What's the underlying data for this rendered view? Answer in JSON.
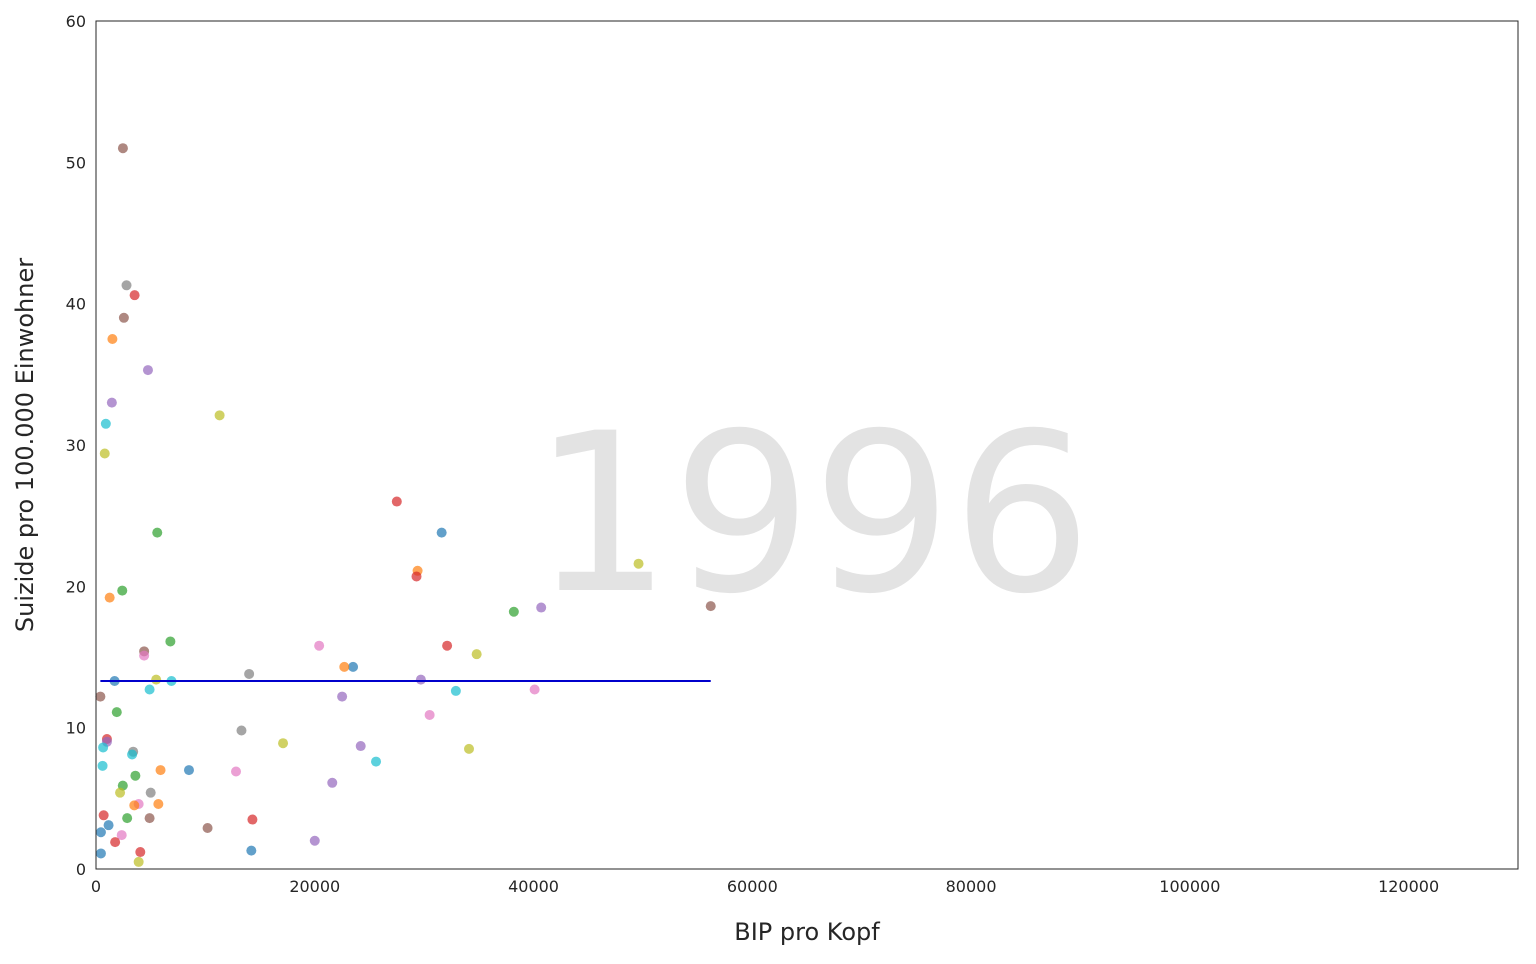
{
  "chart_data": {
    "type": "scatter",
    "title": "",
    "watermark": "1996",
    "xlabel": "BIP pro Kopf",
    "ylabel": "Suizide pro 100.000 Einwohner",
    "xlim": [
      0,
      130000
    ],
    "ylim": [
      0,
      60
    ],
    "xticks": [
      0,
      20000,
      40000,
      60000,
      80000,
      100000,
      120000
    ],
    "yticks": [
      0,
      10,
      20,
      30,
      40,
      50,
      60
    ],
    "grid": false,
    "legend": "none",
    "trend_line": {
      "color": "#0000cc",
      "x": [
        400,
        56200
      ],
      "y": [
        13.3,
        13.3
      ]
    },
    "points": [
      {
        "x": 2460,
        "y": 51.0,
        "color": "#8c564b"
      },
      {
        "x": 2790,
        "y": 41.3,
        "color": "#7f7f7f"
      },
      {
        "x": 3530,
        "y": 40.6,
        "color": "#d62728"
      },
      {
        "x": 2550,
        "y": 39.0,
        "color": "#8c564b"
      },
      {
        "x": 1500,
        "y": 37.5,
        "color": "#ff7f0e"
      },
      {
        "x": 4750,
        "y": 35.3,
        "color": "#9467bd"
      },
      {
        "x": 1450,
        "y": 33.0,
        "color": "#9467bd"
      },
      {
        "x": 11300,
        "y": 32.1,
        "color": "#bcbd22"
      },
      {
        "x": 900,
        "y": 31.5,
        "color": "#17becf"
      },
      {
        "x": 800,
        "y": 29.4,
        "color": "#bcbd22"
      },
      {
        "x": 27500,
        "y": 26.0,
        "color": "#d62728"
      },
      {
        "x": 5600,
        "y": 23.8,
        "color": "#2ca02c"
      },
      {
        "x": 31600,
        "y": 23.8,
        "color": "#1f77b4"
      },
      {
        "x": 49600,
        "y": 21.6,
        "color": "#bcbd22"
      },
      {
        "x": 29400,
        "y": 21.1,
        "color": "#ff7f0e"
      },
      {
        "x": 29300,
        "y": 20.7,
        "color": "#d62728"
      },
      {
        "x": 2400,
        "y": 19.7,
        "color": "#2ca02c"
      },
      {
        "x": 1250,
        "y": 19.2,
        "color": "#ff7f0e"
      },
      {
        "x": 56200,
        "y": 18.6,
        "color": "#8c564b"
      },
      {
        "x": 40700,
        "y": 18.5,
        "color": "#9467bd"
      },
      {
        "x": 38200,
        "y": 18.2,
        "color": "#2ca02c"
      },
      {
        "x": 6800,
        "y": 16.1,
        "color": "#2ca02c"
      },
      {
        "x": 20400,
        "y": 15.8,
        "color": "#e377c2"
      },
      {
        "x": 32100,
        "y": 15.8,
        "color": "#d62728"
      },
      {
        "x": 4400,
        "y": 15.4,
        "color": "#8c564b"
      },
      {
        "x": 34800,
        "y": 15.2,
        "color": "#bcbd22"
      },
      {
        "x": 4400,
        "y": 15.1,
        "color": "#e377c2"
      },
      {
        "x": 23500,
        "y": 14.3,
        "color": "#1f77b4"
      },
      {
        "x": 22700,
        "y": 14.3,
        "color": "#ff7f0e"
      },
      {
        "x": 14000,
        "y": 13.8,
        "color": "#7f7f7f"
      },
      {
        "x": 29700,
        "y": 13.4,
        "color": "#9467bd"
      },
      {
        "x": 5500,
        "y": 13.4,
        "color": "#bcbd22"
      },
      {
        "x": 6900,
        "y": 13.3,
        "color": "#17becf"
      },
      {
        "x": 1700,
        "y": 13.3,
        "color": "#1f77b4"
      },
      {
        "x": 40100,
        "y": 12.7,
        "color": "#e377c2"
      },
      {
        "x": 4900,
        "y": 12.7,
        "color": "#17becf"
      },
      {
        "x": 32900,
        "y": 12.6,
        "color": "#17becf"
      },
      {
        "x": 22500,
        "y": 12.2,
        "color": "#9467bd"
      },
      {
        "x": 400,
        "y": 12.2,
        "color": "#8c564b"
      },
      {
        "x": 1900,
        "y": 11.1,
        "color": "#2ca02c"
      },
      {
        "x": 30500,
        "y": 10.9,
        "color": "#e377c2"
      },
      {
        "x": 13300,
        "y": 9.8,
        "color": "#7f7f7f"
      },
      {
        "x": 1000,
        "y": 9.2,
        "color": "#d62728"
      },
      {
        "x": 1000,
        "y": 9.0,
        "color": "#9467bd"
      },
      {
        "x": 17100,
        "y": 8.9,
        "color": "#bcbd22"
      },
      {
        "x": 24200,
        "y": 8.7,
        "color": "#9467bd"
      },
      {
        "x": 650,
        "y": 8.6,
        "color": "#17becf"
      },
      {
        "x": 34100,
        "y": 8.5,
        "color": "#bcbd22"
      },
      {
        "x": 3400,
        "y": 8.3,
        "color": "#7f7f7f"
      },
      {
        "x": 3300,
        "y": 8.1,
        "color": "#17becf"
      },
      {
        "x": 25600,
        "y": 7.6,
        "color": "#17becf"
      },
      {
        "x": 600,
        "y": 7.3,
        "color": "#17becf"
      },
      {
        "x": 5900,
        "y": 7.0,
        "color": "#ff7f0e"
      },
      {
        "x": 8500,
        "y": 7.0,
        "color": "#1f77b4"
      },
      {
        "x": 12800,
        "y": 6.9,
        "color": "#e377c2"
      },
      {
        "x": 3600,
        "y": 6.6,
        "color": "#2ca02c"
      },
      {
        "x": 21600,
        "y": 6.1,
        "color": "#9467bd"
      },
      {
        "x": 2450,
        "y": 5.9,
        "color": "#2ca02c"
      },
      {
        "x": 5000,
        "y": 5.4,
        "color": "#7f7f7f"
      },
      {
        "x": 2200,
        "y": 5.4,
        "color": "#bcbd22"
      },
      {
        "x": 3900,
        "y": 4.6,
        "color": "#e377c2"
      },
      {
        "x": 5700,
        "y": 4.6,
        "color": "#ff7f0e"
      },
      {
        "x": 3500,
        "y": 4.5,
        "color": "#ff7f0e"
      },
      {
        "x": 700,
        "y": 3.8,
        "color": "#d62728"
      },
      {
        "x": 2850,
        "y": 3.6,
        "color": "#2ca02c"
      },
      {
        "x": 4900,
        "y": 3.6,
        "color": "#8c564b"
      },
      {
        "x": 14300,
        "y": 3.5,
        "color": "#d62728"
      },
      {
        "x": 1150,
        "y": 3.1,
        "color": "#1f77b4"
      },
      {
        "x": 10200,
        "y": 2.9,
        "color": "#8c564b"
      },
      {
        "x": 450,
        "y": 2.6,
        "color": "#1f77b4"
      },
      {
        "x": 2350,
        "y": 2.4,
        "color": "#e377c2"
      },
      {
        "x": 20000,
        "y": 2.0,
        "color": "#9467bd"
      },
      {
        "x": 1750,
        "y": 1.9,
        "color": "#d62728"
      },
      {
        "x": 14200,
        "y": 1.3,
        "color": "#1f77b4"
      },
      {
        "x": 4050,
        "y": 1.2,
        "color": "#d62728"
      },
      {
        "x": 450,
        "y": 1.1,
        "color": "#1f77b4"
      },
      {
        "x": 3900,
        "y": 0.5,
        "color": "#bcbd22"
      }
    ]
  }
}
